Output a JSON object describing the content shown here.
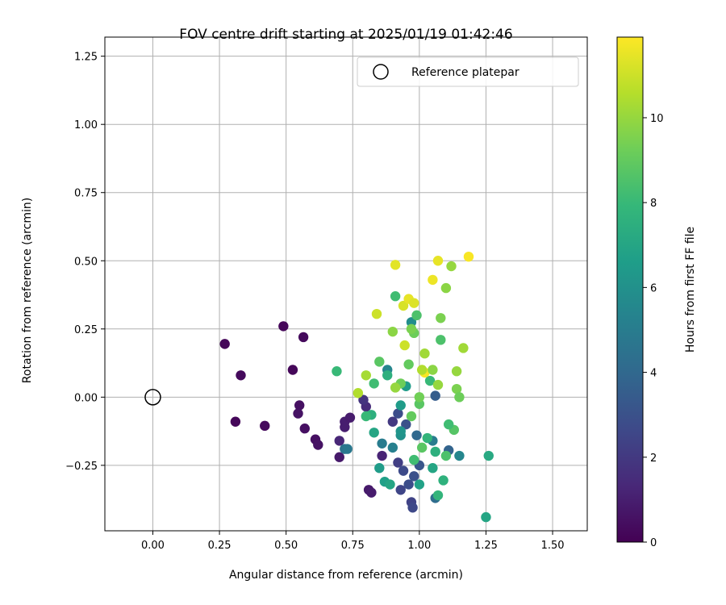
{
  "chart_data": {
    "type": "scatter",
    "title": "FOV centre drift starting at 2025/01/19 01:42:46",
    "xlabel": "Angular distance from reference (arcmin)",
    "ylabel": "Rotation from reference (arcmin)",
    "xlim": [
      -0.18,
      1.63
    ],
    "ylim": [
      -0.49,
      1.32
    ],
    "xticks": [
      0.0,
      0.25,
      0.5,
      0.75,
      1.0,
      1.25,
      1.5
    ],
    "xtick_labels": [
      "0.00",
      "0.25",
      "0.50",
      "0.75",
      "1.00",
      "1.25",
      "1.50"
    ],
    "yticks": [
      -0.25,
      0.0,
      0.25,
      0.5,
      0.75,
      1.0,
      1.25
    ],
    "ytick_labels": [
      "−0.25",
      "0.00",
      "0.25",
      "0.50",
      "0.75",
      "1.00",
      "1.25"
    ],
    "grid": true,
    "legend": {
      "placement": "upper-right",
      "entries": [
        {
          "label": "Reference platepar",
          "marker": "open-circle"
        }
      ]
    },
    "reference_point": {
      "x": 0.0,
      "y": 0.0
    },
    "colorbar": {
      "label": "Hours from first FF file",
      "colormap": "viridis",
      "range": [
        0,
        11.9
      ],
      "ticks": [
        0,
        2,
        4,
        6,
        8,
        10
      ],
      "tick_labels": [
        "0",
        "2",
        "4",
        "6",
        "8",
        "10"
      ]
    },
    "colormap_stops": [
      "#440154",
      "#482878",
      "#3e4989",
      "#31688e",
      "#26828e",
      "#1f9e89",
      "#35b779",
      "#6ece58",
      "#b5de2b",
      "#fde725"
    ],
    "series": [
      {
        "color_by": "hours",
        "points": [
          {
            "x": 0.27,
            "y": 0.195,
            "c": 0.2
          },
          {
            "x": 0.49,
            "y": 0.26,
            "c": 0.2
          },
          {
            "x": 0.565,
            "y": 0.22,
            "c": 0.3
          },
          {
            "x": 0.33,
            "y": 0.08,
            "c": 0.3
          },
          {
            "x": 0.525,
            "y": 0.1,
            "c": 0.2
          },
          {
            "x": 0.31,
            "y": -0.09,
            "c": 0.2
          },
          {
            "x": 0.42,
            "y": -0.105,
            "c": 0.3
          },
          {
            "x": 0.55,
            "y": -0.03,
            "c": 0.5
          },
          {
            "x": 0.545,
            "y": -0.06,
            "c": 0.6
          },
          {
            "x": 0.57,
            "y": -0.115,
            "c": 0.5
          },
          {
            "x": 0.61,
            "y": -0.155,
            "c": 0.5
          },
          {
            "x": 0.62,
            "y": -0.175,
            "c": 0.6
          },
          {
            "x": 0.7,
            "y": -0.22,
            "c": 0.8
          },
          {
            "x": 0.72,
            "y": -0.09,
            "c": 1.0
          },
          {
            "x": 0.72,
            "y": -0.11,
            "c": 1.0
          },
          {
            "x": 0.74,
            "y": -0.075,
            "c": 0.9
          },
          {
            "x": 0.81,
            "y": -0.34,
            "c": 0.8
          },
          {
            "x": 0.82,
            "y": -0.35,
            "c": 0.9
          },
          {
            "x": 0.86,
            "y": -0.215,
            "c": 1.2
          },
          {
            "x": 0.7,
            "y": -0.16,
            "c": 1.3
          },
          {
            "x": 0.8,
            "y": -0.035,
            "c": 1.5
          },
          {
            "x": 0.79,
            "y": -0.01,
            "c": 1.8
          },
          {
            "x": 0.9,
            "y": -0.09,
            "c": 2.0
          },
          {
            "x": 0.92,
            "y": -0.24,
            "c": 2.2
          },
          {
            "x": 0.97,
            "y": -0.385,
            "c": 2.4
          },
          {
            "x": 0.975,
            "y": -0.405,
            "c": 2.6
          },
          {
            "x": 0.93,
            "y": -0.34,
            "c": 2.5
          },
          {
            "x": 0.96,
            "y": -0.32,
            "c": 2.8
          },
          {
            "x": 0.94,
            "y": -0.27,
            "c": 2.7
          },
          {
            "x": 0.98,
            "y": -0.29,
            "c": 3.0
          },
          {
            "x": 1.0,
            "y": -0.25,
            "c": 3.2
          },
          {
            "x": 0.92,
            "y": -0.06,
            "c": 2.8
          },
          {
            "x": 0.95,
            "y": -0.1,
            "c": 3.0
          },
          {
            "x": 1.06,
            "y": 0.005,
            "c": 3.5
          },
          {
            "x": 1.11,
            "y": -0.195,
            "c": 3.8
          },
          {
            "x": 0.99,
            "y": -0.14,
            "c": 4.0
          },
          {
            "x": 1.06,
            "y": -0.37,
            "c": 4.2
          },
          {
            "x": 0.72,
            "y": -0.19,
            "c": 4.5
          },
          {
            "x": 0.73,
            "y": -0.19,
            "c": 4.8
          },
          {
            "x": 0.86,
            "y": -0.17,
            "c": 5.0
          },
          {
            "x": 0.9,
            "y": -0.185,
            "c": 5.2
          },
          {
            "x": 1.05,
            "y": -0.16,
            "c": 5.0
          },
          {
            "x": 1.15,
            "y": -0.215,
            "c": 5.5
          },
          {
            "x": 0.97,
            "y": 0.275,
            "c": 5.8
          },
          {
            "x": 0.88,
            "y": 0.1,
            "c": 5.5
          },
          {
            "x": 0.93,
            "y": -0.14,
            "c": 6.0
          },
          {
            "x": 0.93,
            "y": -0.125,
            "c": 6.2
          },
          {
            "x": 0.85,
            "y": -0.26,
            "c": 6.5
          },
          {
            "x": 1.0,
            "y": -0.32,
            "c": 6.8
          },
          {
            "x": 1.05,
            "y": -0.26,
            "c": 7.0
          },
          {
            "x": 0.87,
            "y": -0.31,
            "c": 6.7
          },
          {
            "x": 0.89,
            "y": -0.32,
            "c": 7.0
          },
          {
            "x": 0.93,
            "y": -0.03,
            "c": 6.5
          },
          {
            "x": 0.95,
            "y": 0.04,
            "c": 6.5
          },
          {
            "x": 0.88,
            "y": 0.08,
            "c": 7.5
          },
          {
            "x": 1.25,
            "y": -0.44,
            "c": 7.0
          },
          {
            "x": 1.26,
            "y": -0.215,
            "c": 7.2
          },
          {
            "x": 0.83,
            "y": -0.13,
            "c": 7.0
          },
          {
            "x": 0.98,
            "y": -0.23,
            "c": 8.2
          },
          {
            "x": 1.07,
            "y": -0.36,
            "c": 7.8
          },
          {
            "x": 1.09,
            "y": -0.305,
            "c": 7.6
          },
          {
            "x": 1.06,
            "y": -0.2,
            "c": 7.5
          },
          {
            "x": 1.03,
            "y": -0.15,
            "c": 7.8
          },
          {
            "x": 1.1,
            "y": -0.215,
            "c": 8.5
          },
          {
            "x": 0.82,
            "y": -0.065,
            "c": 7.5
          },
          {
            "x": 0.8,
            "y": -0.07,
            "c": 8.0
          },
          {
            "x": 0.69,
            "y": 0.095,
            "c": 8.0
          },
          {
            "x": 0.91,
            "y": 0.37,
            "c": 8.2
          },
          {
            "x": 0.99,
            "y": 0.3,
            "c": 8.5
          },
          {
            "x": 1.08,
            "y": 0.21,
            "c": 8.5
          },
          {
            "x": 0.85,
            "y": 0.13,
            "c": 8.8
          },
          {
            "x": 0.83,
            "y": 0.05,
            "c": 8.2
          },
          {
            "x": 1.04,
            "y": 0.06,
            "c": 8.0
          },
          {
            "x": 1.0,
            "y": -0.025,
            "c": 8.8
          },
          {
            "x": 1.13,
            "y": -0.12,
            "c": 8.7
          },
          {
            "x": 1.11,
            "y": -0.1,
            "c": 8.2
          },
          {
            "x": 0.97,
            "y": -0.07,
            "c": 9.0
          },
          {
            "x": 1.01,
            "y": -0.185,
            "c": 8.8
          },
          {
            "x": 0.98,
            "y": 0.235,
            "c": 9.2
          },
          {
            "x": 0.9,
            "y": 0.24,
            "c": 9.8
          },
          {
            "x": 0.97,
            "y": 0.25,
            "c": 9.5
          },
          {
            "x": 0.96,
            "y": 0.12,
            "c": 9.0
          },
          {
            "x": 1.0,
            "y": 0.0,
            "c": 9.3
          },
          {
            "x": 1.1,
            "y": 0.4,
            "c": 9.8
          },
          {
            "x": 1.08,
            "y": 0.29,
            "c": 9.5
          },
          {
            "x": 1.12,
            "y": 0.48,
            "c": 10.0
          },
          {
            "x": 1.165,
            "y": 0.18,
            "c": 10.2
          },
          {
            "x": 1.14,
            "y": 0.095,
            "c": 10.0
          },
          {
            "x": 1.14,
            "y": 0.03,
            "c": 9.5
          },
          {
            "x": 1.15,
            "y": 0.0,
            "c": 9.2
          },
          {
            "x": 1.07,
            "y": 0.045,
            "c": 10.0
          },
          {
            "x": 1.02,
            "y": 0.16,
            "c": 10.2
          },
          {
            "x": 0.93,
            "y": 0.05,
            "c": 9.2
          },
          {
            "x": 0.91,
            "y": 0.035,
            "c": 10.0
          },
          {
            "x": 0.8,
            "y": 0.08,
            "c": 10.3
          },
          {
            "x": 0.77,
            "y": 0.015,
            "c": 10.5
          },
          {
            "x": 0.84,
            "y": 0.305,
            "c": 11.0
          },
          {
            "x": 0.94,
            "y": 0.335,
            "c": 11.2
          },
          {
            "x": 0.96,
            "y": 0.36,
            "c": 11.5
          },
          {
            "x": 0.98,
            "y": 0.345,
            "c": 11.3
          },
          {
            "x": 0.91,
            "y": 0.485,
            "c": 11.4
          },
          {
            "x": 1.07,
            "y": 0.5,
            "c": 11.5
          },
          {
            "x": 1.05,
            "y": 0.43,
            "c": 11.6
          },
          {
            "x": 1.185,
            "y": 0.515,
            "c": 11.8
          },
          {
            "x": 0.945,
            "y": 0.19,
            "c": 11.0
          },
          {
            "x": 1.02,
            "y": 0.09,
            "c": 11.8
          },
          {
            "x": 1.01,
            "y": 0.1,
            "c": 10.5
          },
          {
            "x": 1.05,
            "y": 0.1,
            "c": 9.8
          }
        ]
      }
    ]
  }
}
